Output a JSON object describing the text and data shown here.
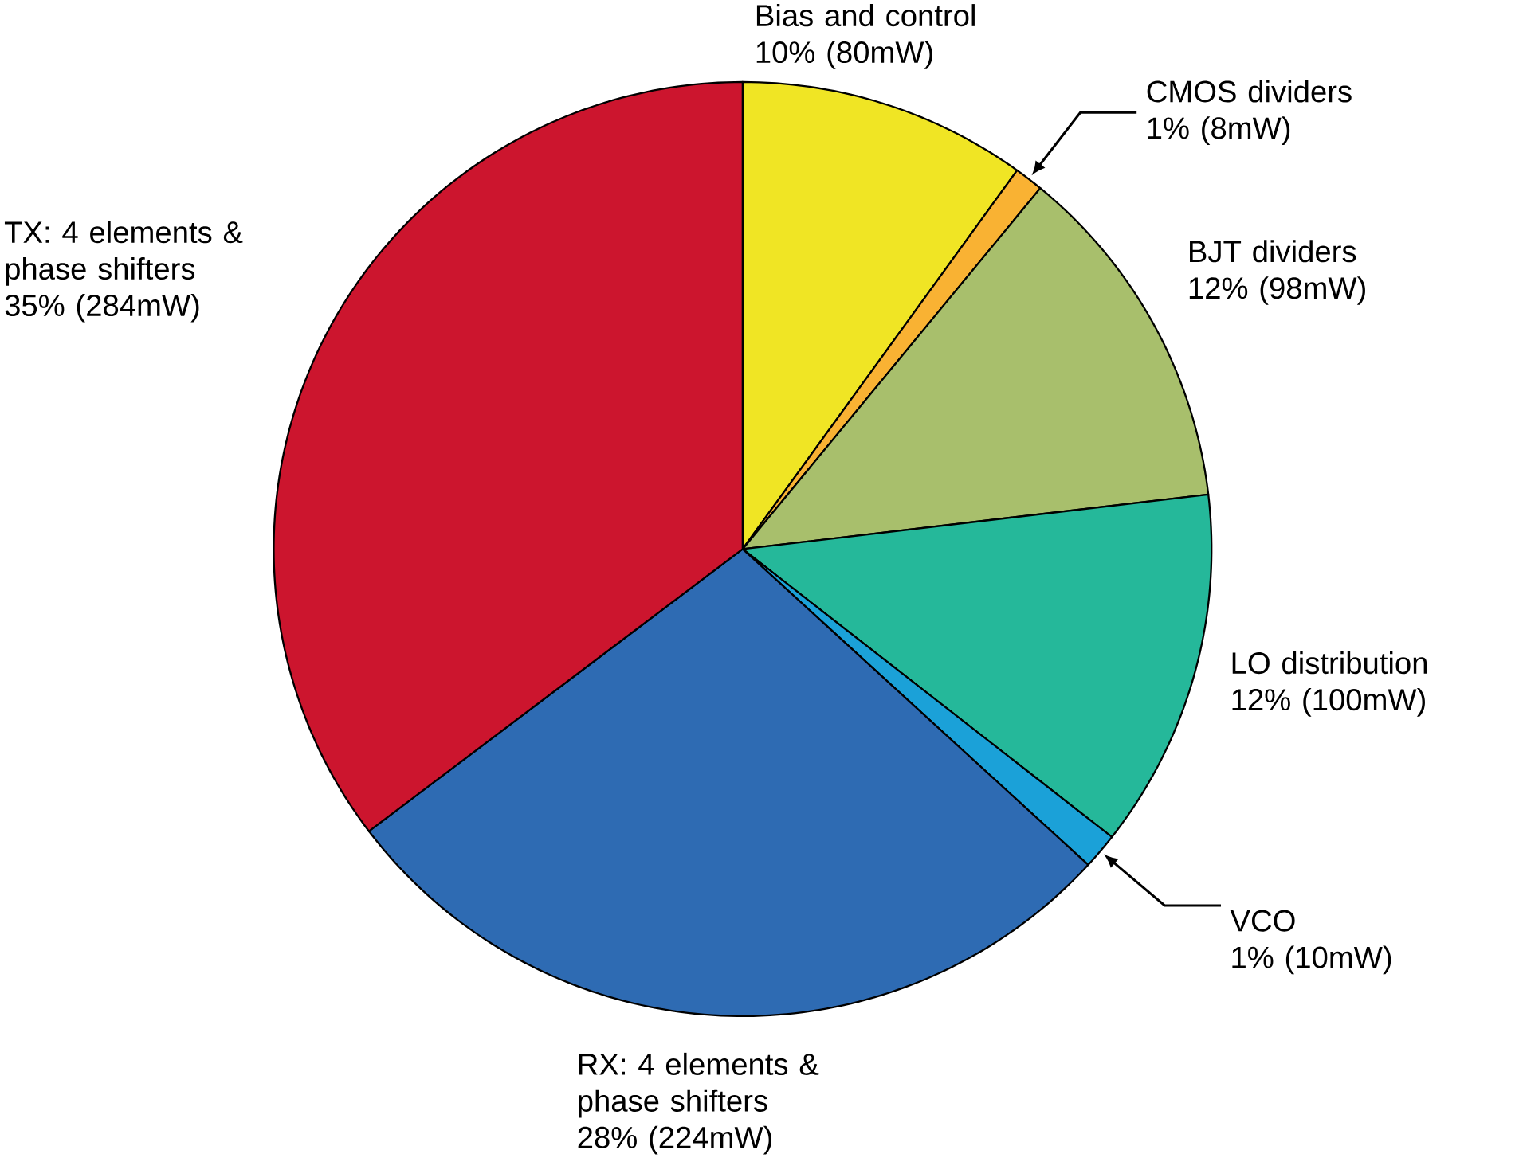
{
  "chart_data": {
    "type": "pie",
    "categories": [
      "Bias and control",
      "CMOS dividers",
      "BJT dividers",
      "LO distribution",
      "VCO",
      "RX: 4 elements & phase shifters",
      "TX: 4 elements & phase shifters"
    ],
    "values": [
      80,
      8,
      98,
      100,
      10,
      224,
      284
    ],
    "value_labels": [
      "10% (80mW)",
      "1% (8mW)",
      "12% (98mW)",
      "12% (100mW)",
      "1% (10mW)",
      "28% (224mW)",
      "35% (284mW)"
    ],
    "colors": [
      "#f0e524",
      "#f9b233",
      "#a8bf6c",
      "#25b89a",
      "#1ba1d8",
      "#2e6bb3",
      "#cc152e"
    ]
  }
}
